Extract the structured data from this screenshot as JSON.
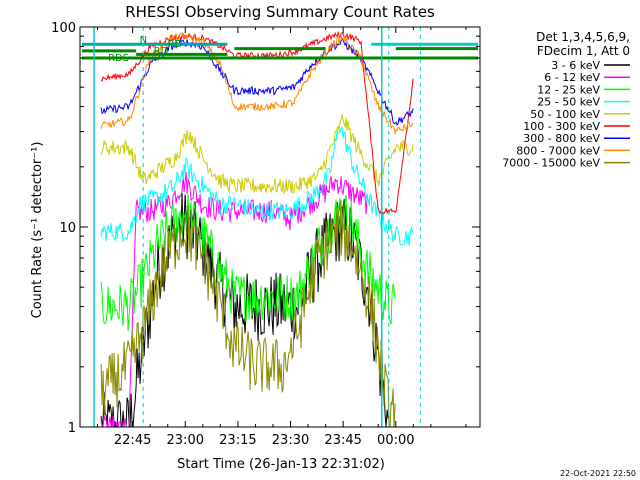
{
  "chart_data": {
    "type": "line",
    "title": "RHESSI Observing Summary Count Rates",
    "xlabel": "Start Time (26-Jan-13 22:31:02)",
    "ylabel": "Count Rate (s⁻¹ detector⁻¹)",
    "yscale": "log",
    "ylim": [
      1,
      100
    ],
    "xlim_minutes": [
      22.5,
      24.4
    ],
    "x_ticks": [
      "22:45",
      "23:00",
      "23:15",
      "23:30",
      "23:45",
      "00:00"
    ],
    "y_ticks": [
      "1",
      "10",
      "100"
    ],
    "legend_header": [
      "Det 1,3,4,5,6,9,",
      "FDecim 1, Att 0"
    ],
    "legend_position": "right",
    "annotations": [
      "RD",
      "RD",
      "N",
      "RDS"
    ],
    "footer": "22-Oct-2021 22:50",
    "series": [
      {
        "name": "3 - 6 keV",
        "color": "#000000",
        "x": [
          "22:36",
          "22:44",
          "22:47",
          "22:52",
          "22:58",
          "23:00",
          "23:05",
          "23:10",
          "23:14",
          "23:17",
          "23:22",
          "23:28",
          "23:32",
          "23:38",
          "23:44",
          "23:47",
          "23:52",
          "23:58"
        ],
        "y": [
          1.0,
          1.0,
          2.0,
          6.0,
          10.0,
          10.5,
          8.0,
          5.0,
          4.0,
          4.0,
          4.0,
          4.0,
          4.0,
          7.0,
          10.0,
          9.0,
          5.0,
          1.0
        ]
      },
      {
        "name": "6 - 12 keV",
        "color": "#ff00ff",
        "x": [
          "22:36",
          "22:44",
          "22:46",
          "22:50",
          "22:55",
          "23:00",
          "23:05",
          "23:10",
          "23:15",
          "23:20",
          "23:25",
          "23:30",
          "23:35",
          "23:40",
          "23:43",
          "23:47",
          "23:52"
        ],
        "y": [
          1.0,
          1.0,
          12.0,
          12.0,
          13.0,
          17.0,
          13.0,
          12.0,
          12.0,
          12.0,
          12.0,
          11.0,
          13.0,
          15.0,
          17.0,
          15.0,
          13.0
        ]
      },
      {
        "name": "12 - 25 keV",
        "color": "#00ff00",
        "x": [
          "22:36",
          "22:44",
          "22:47",
          "22:52",
          "22:58",
          "23:00",
          "23:05",
          "23:10",
          "23:14",
          "23:20",
          "23:28",
          "23:32",
          "23:38",
          "23:44",
          "23:47",
          "23:52",
          "23:58",
          "00:00"
        ],
        "y": [
          4.0,
          4.0,
          5.0,
          8.0,
          11.0,
          12.0,
          9.0,
          6.0,
          4.5,
          4.5,
          4.5,
          4.5,
          8.0,
          12.0,
          11.0,
          6.0,
          4.0,
          4.0
        ]
      },
      {
        "name": "25 - 50 keV",
        "color": "#00ffff",
        "x": [
          "22:36",
          "22:44",
          "22:47",
          "22:52",
          "22:57",
          "23:00",
          "23:05",
          "23:10",
          "23:15",
          "23:20",
          "23:25",
          "23:30",
          "23:36",
          "23:41",
          "23:44",
          "23:48",
          "23:54",
          "00:00",
          "00:05"
        ],
        "y": [
          9.5,
          9.5,
          13.0,
          14.0,
          16.0,
          20.0,
          16.0,
          13.0,
          13.0,
          12.0,
          12.0,
          12.0,
          14.0,
          18.0,
          33.0,
          20.0,
          12.0,
          9.0,
          9.0
        ]
      },
      {
        "name": "50 - 100 keV",
        "color": "#cccc00",
        "x": [
          "22:36",
          "22:44",
          "22:48",
          "22:52",
          "22:57",
          "23:01",
          "23:05",
          "23:10",
          "23:14",
          "23:20",
          "23:25",
          "23:32",
          "23:38",
          "23:42",
          "23:45",
          "23:49",
          "23:55",
          "00:00",
          "00:05"
        ],
        "y": [
          25.0,
          25.0,
          17.0,
          19.0,
          22.0,
          30.0,
          22.0,
          17.0,
          16.0,
          16.0,
          16.0,
          16.0,
          18.0,
          26.0,
          35.0,
          25.0,
          17.0,
          25.0,
          25.0
        ]
      },
      {
        "name": "100 - 300 keV",
        "color": "#ff0000",
        "x": [
          "22:36",
          "22:44",
          "22:50",
          "22:56",
          "23:00",
          "23:05",
          "23:10",
          "23:14",
          "23:20",
          "23:25",
          "23:31",
          "23:36",
          "23:42",
          "23:45",
          "23:50",
          "23:55",
          "00:00",
          "00:05"
        ],
        "y": [
          55.0,
          58.0,
          80.0,
          88.0,
          90.0,
          88.0,
          80.0,
          72.0,
          72.0,
          72.0,
          75.0,
          82.0,
          90.0,
          92.0,
          85.0,
          12.0,
          12.0,
          55.0
        ]
      },
      {
        "name": "300 - 800 keV",
        "color": "#0000ff",
        "x": [
          "22:36",
          "22:44",
          "22:50",
          "22:56",
          "23:00",
          "23:05",
          "23:10",
          "23:14",
          "23:20",
          "23:25",
          "23:31",
          "23:36",
          "23:42",
          "23:45",
          "23:50",
          "23:55",
          "00:00",
          "00:05"
        ],
        "y": [
          38.0,
          40.0,
          65.0,
          80.0,
          84.0,
          80.0,
          60.0,
          48.0,
          48.0,
          48.0,
          50.0,
          65.0,
          80.0,
          84.0,
          70.0,
          48.0,
          33.0,
          38.0
        ]
      },
      {
        "name": "800 - 7000 keV",
        "color": "#ff8800",
        "x": [
          "22:36",
          "22:44",
          "22:50",
          "22:56",
          "23:00",
          "23:05",
          "23:10",
          "23:14",
          "23:20",
          "23:25",
          "23:31",
          "23:36",
          "23:42",
          "23:45",
          "23:50",
          "23:55",
          "00:00",
          "00:05"
        ],
        "y": [
          32.0,
          34.0,
          70.0,
          88.0,
          90.0,
          85.0,
          65.0,
          40.0,
          40.0,
          40.0,
          42.0,
          60.0,
          82.0,
          88.0,
          70.0,
          40.0,
          30.0,
          33.0
        ]
      },
      {
        "name": "7000 - 15000 keV",
        "color": "#888800",
        "x": [
          "22:36",
          "22:44",
          "22:48",
          "22:53",
          "22:58",
          "23:00",
          "23:05",
          "23:10",
          "23:14",
          "23:20",
          "23:28",
          "23:32",
          "23:38",
          "23:44",
          "23:48",
          "23:53",
          "23:58",
          "00:00"
        ],
        "y": [
          1.5,
          2.0,
          3.0,
          6.0,
          9.0,
          10.0,
          7.0,
          4.0,
          2.5,
          2.0,
          2.0,
          3.0,
          7.0,
          10.0,
          8.0,
          4.0,
          1.2,
          1.2
        ]
      }
    ]
  }
}
